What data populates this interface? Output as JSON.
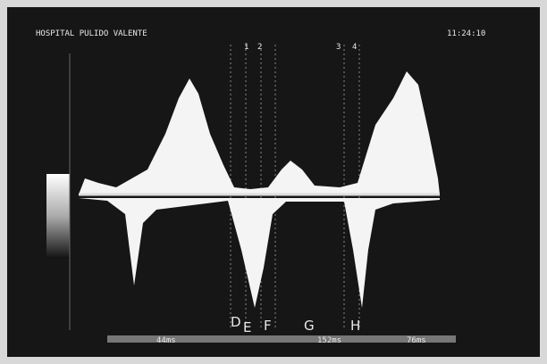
{
  "header": {
    "hospital": "HOSPITAL PULIDO VALENTE",
    "time": "11:24:10"
  },
  "markers": [
    "1",
    "2",
    "3",
    "4"
  ],
  "labels": [
    "D",
    "E",
    "F",
    "G",
    "H"
  ],
  "footer": {
    "first": "44ms",
    "second": "152ms",
    "third": "76ms"
  }
}
